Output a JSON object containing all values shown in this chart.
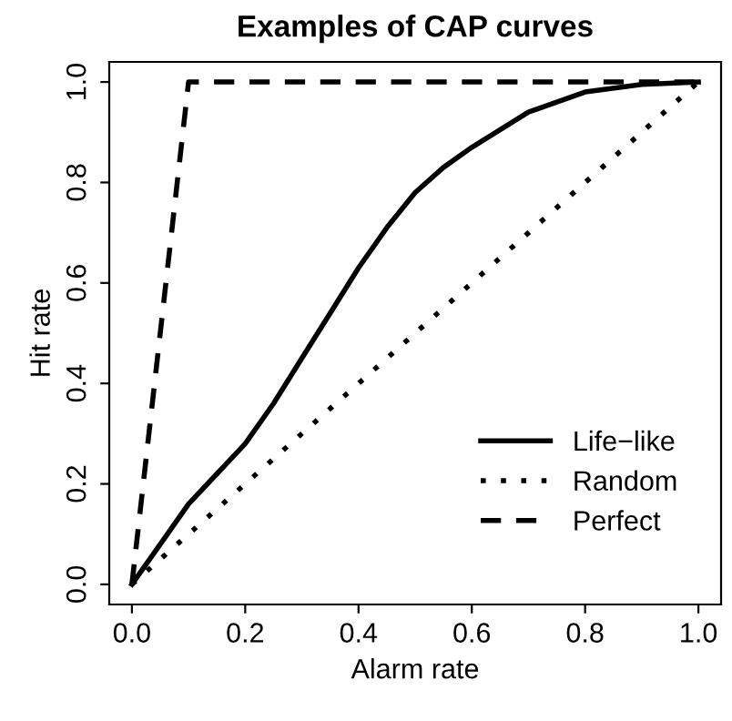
{
  "chart_data": {
    "type": "line",
    "title": "Examples of CAP curves",
    "xlabel": "Alarm rate",
    "ylabel": "Hit rate",
    "xlim": [
      -0.04,
      1.04
    ],
    "ylim": [
      -0.04,
      1.04
    ],
    "xticks": [
      {
        "value": 0,
        "label": "0.0"
      },
      0.2,
      0.4,
      0.6,
      0.8,
      {
        "value": 1,
        "label": "1.0"
      }
    ],
    "yticks": [
      {
        "value": 0,
        "label": "0.0"
      },
      0.2,
      0.4,
      0.6,
      0.8,
      {
        "value": 1,
        "label": "1.0"
      }
    ],
    "grid": false,
    "legend": "bottom right",
    "marker": "none",
    "series": [
      {
        "name": "Life−like",
        "color": "#000000",
        "line_style": "solid",
        "x": [
          0,
          0.05,
          0.1,
          0.15,
          0.2,
          0.25,
          0.3,
          0.35,
          0.4,
          0.45,
          0.5,
          0.55,
          0.6,
          0.7,
          0.8,
          0.9,
          1.0
        ],
        "values": [
          0,
          0.08,
          0.16,
          0.22,
          0.28,
          0.36,
          0.45,
          0.54,
          0.63,
          0.71,
          0.78,
          0.83,
          0.87,
          0.94,
          0.98,
          0.995,
          1.0
        ]
      },
      {
        "name": "Random",
        "color": "#000000",
        "line_style": "dotted",
        "x": [
          0,
          1
        ],
        "values": [
          0,
          1
        ]
      },
      {
        "name": "Perfect",
        "color": "#000000",
        "line_style": "dashed",
        "x": [
          0,
          0.1,
          1
        ],
        "values": [
          0,
          1,
          1
        ]
      }
    ]
  }
}
